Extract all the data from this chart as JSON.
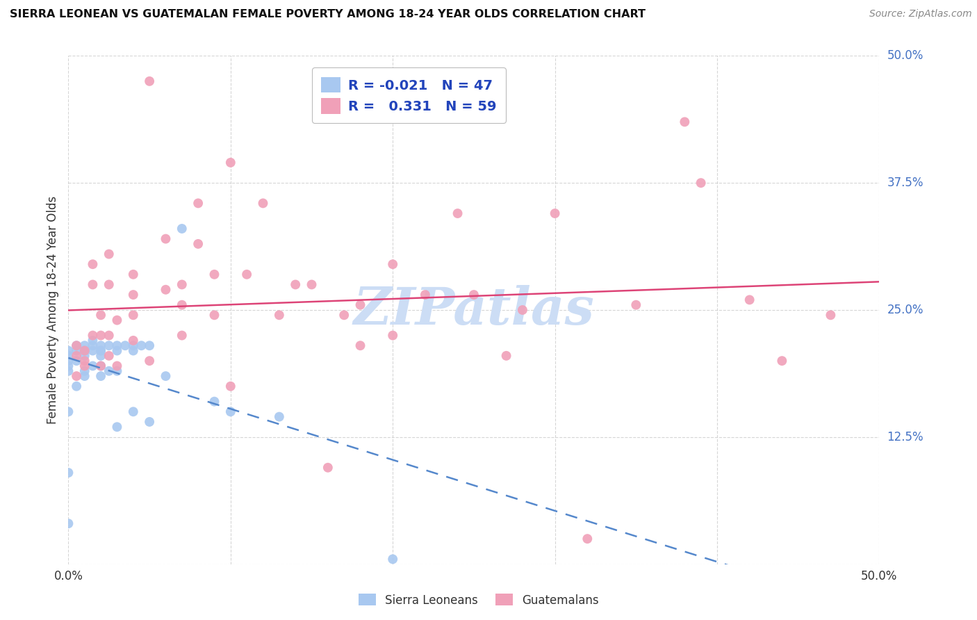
{
  "title": "SIERRA LEONEAN VS GUATEMALAN FEMALE POVERTY AMONG 18-24 YEAR OLDS CORRELATION CHART",
  "source": "Source: ZipAtlas.com",
  "ylabel": "Female Poverty Among 18-24 Year Olds",
  "sierra_R": -0.021,
  "sierra_N": 47,
  "guatemalan_R": 0.331,
  "guatemalan_N": 59,
  "sierra_color": "#a8c8f0",
  "guatemalan_color": "#f0a0b8",
  "sierra_line_color": "#5588cc",
  "guatemalan_line_color": "#dd4477",
  "watermark_color": "#ccddf5",
  "xlim": [
    0.0,
    0.5
  ],
  "ylim": [
    0.0,
    0.5
  ],
  "sierra_x": [
    0.0,
    0.0,
    0.0,
    0.0,
    0.0,
    0.0,
    0.0,
    0.0,
    0.005,
    0.005,
    0.005,
    0.005,
    0.01,
    0.01,
    0.01,
    0.01,
    0.01,
    0.01,
    0.015,
    0.015,
    0.015,
    0.015,
    0.02,
    0.02,
    0.02,
    0.02,
    0.02,
    0.02,
    0.025,
    0.025,
    0.03,
    0.03,
    0.03,
    0.03,
    0.035,
    0.04,
    0.04,
    0.04,
    0.045,
    0.05,
    0.05,
    0.06,
    0.07,
    0.09,
    0.1,
    0.13,
    0.2
  ],
  "sierra_y": [
    0.21,
    0.205,
    0.2,
    0.195,
    0.19,
    0.15,
    0.09,
    0.04,
    0.215,
    0.21,
    0.2,
    0.175,
    0.215,
    0.21,
    0.21,
    0.205,
    0.19,
    0.185,
    0.22,
    0.215,
    0.21,
    0.195,
    0.215,
    0.21,
    0.21,
    0.205,
    0.195,
    0.185,
    0.215,
    0.19,
    0.215,
    0.21,
    0.19,
    0.135,
    0.215,
    0.215,
    0.21,
    0.15,
    0.215,
    0.215,
    0.14,
    0.185,
    0.33,
    0.16,
    0.15,
    0.145,
    0.005
  ],
  "guatemalan_x": [
    0.005,
    0.005,
    0.005,
    0.01,
    0.01,
    0.01,
    0.015,
    0.015,
    0.015,
    0.02,
    0.02,
    0.02,
    0.025,
    0.025,
    0.025,
    0.025,
    0.03,
    0.03,
    0.04,
    0.04,
    0.04,
    0.04,
    0.05,
    0.05,
    0.06,
    0.06,
    0.07,
    0.07,
    0.07,
    0.08,
    0.08,
    0.09,
    0.09,
    0.1,
    0.1,
    0.11,
    0.12,
    0.13,
    0.14,
    0.15,
    0.16,
    0.17,
    0.18,
    0.18,
    0.2,
    0.2,
    0.22,
    0.24,
    0.25,
    0.27,
    0.28,
    0.3,
    0.32,
    0.35,
    0.38,
    0.39,
    0.42,
    0.44,
    0.47
  ],
  "guatemalan_y": [
    0.215,
    0.205,
    0.185,
    0.21,
    0.2,
    0.195,
    0.295,
    0.275,
    0.225,
    0.245,
    0.225,
    0.195,
    0.305,
    0.275,
    0.225,
    0.205,
    0.24,
    0.195,
    0.285,
    0.265,
    0.245,
    0.22,
    0.475,
    0.2,
    0.32,
    0.27,
    0.275,
    0.255,
    0.225,
    0.355,
    0.315,
    0.285,
    0.245,
    0.395,
    0.175,
    0.285,
    0.355,
    0.245,
    0.275,
    0.275,
    0.095,
    0.245,
    0.255,
    0.215,
    0.295,
    0.225,
    0.265,
    0.345,
    0.265,
    0.205,
    0.25,
    0.345,
    0.025,
    0.255,
    0.435,
    0.375,
    0.26,
    0.2,
    0.245
  ]
}
